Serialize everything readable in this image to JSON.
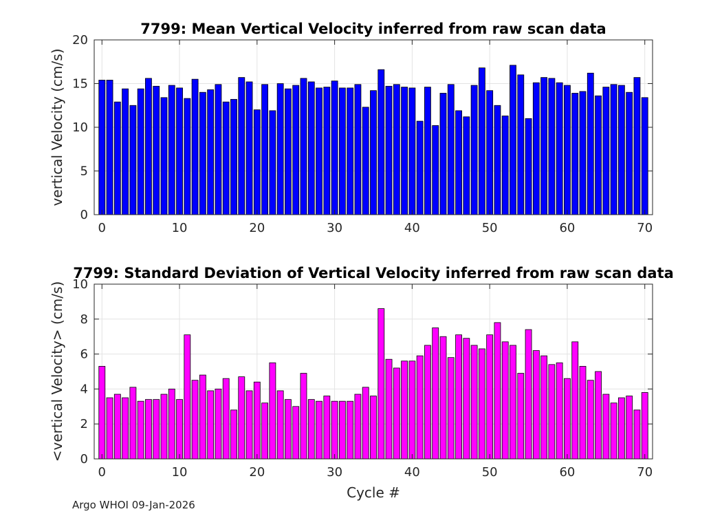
{
  "footer": "Argo WHOI 09-Jan-2026",
  "chart_data": [
    {
      "type": "bar",
      "title": "7799: Mean Vertical Velocity inferred from raw scan data",
      "xlabel": "",
      "ylabel": "vertical Velocity (cm/s)",
      "xlim": [
        -1,
        71
      ],
      "ylim": [
        0,
        20
      ],
      "xticks": [
        0,
        10,
        20,
        30,
        40,
        50,
        60,
        70
      ],
      "yticks": [
        0,
        5,
        10,
        15,
        20
      ],
      "grid": true,
      "bar_color": "#0000ff",
      "x": [
        0,
        1,
        2,
        3,
        4,
        5,
        6,
        7,
        8,
        9,
        10,
        11,
        12,
        13,
        14,
        15,
        16,
        17,
        18,
        19,
        20,
        21,
        22,
        23,
        24,
        25,
        26,
        27,
        28,
        29,
        30,
        31,
        32,
        33,
        34,
        35,
        36,
        37,
        38,
        39,
        40,
        41,
        42,
        43,
        44,
        45,
        46,
        47,
        48,
        49,
        50,
        51,
        52,
        53,
        54,
        55,
        56,
        57,
        58,
        59,
        60,
        61,
        62,
        63,
        64,
        65,
        66,
        67,
        68,
        69,
        70
      ],
      "values": [
        15.4,
        15.4,
        12.9,
        14.4,
        12.5,
        14.4,
        15.6,
        14.7,
        13.4,
        14.8,
        14.5,
        13.3,
        15.5,
        14.0,
        14.3,
        14.9,
        12.9,
        13.2,
        15.7,
        15.2,
        12.0,
        14.9,
        11.9,
        15.0,
        14.4,
        14.8,
        15.6,
        15.2,
        14.5,
        14.6,
        15.3,
        14.5,
        14.5,
        14.9,
        12.3,
        14.2,
        16.6,
        14.7,
        14.9,
        14.6,
        14.5,
        10.7,
        14.6,
        10.2,
        13.9,
        14.9,
        11.9,
        11.2,
        14.8,
        16.8,
        14.2,
        12.5,
        11.3,
        17.1,
        16.0,
        11.0,
        15.1,
        15.7,
        15.6,
        15.1,
        14.8,
        13.9,
        14.1,
        16.2,
        13.6,
        14.6,
        14.9,
        14.8,
        14.0,
        15.7,
        13.4
      ]
    },
    {
      "type": "bar",
      "title": "7799: Standard Deviation of Vertical Velocity inferred from raw scan data",
      "xlabel": "Cycle #",
      "ylabel": "<vertical Velocity> (cm/s)",
      "xlim": [
        -1,
        71
      ],
      "ylim": [
        0,
        10
      ],
      "xticks": [
        0,
        10,
        20,
        30,
        40,
        50,
        60,
        70
      ],
      "yticks": [
        0,
        2,
        4,
        6,
        8,
        10
      ],
      "grid": true,
      "bar_color": "#ff00ff",
      "x": [
        0,
        1,
        2,
        3,
        4,
        5,
        6,
        7,
        8,
        9,
        10,
        11,
        12,
        13,
        14,
        15,
        16,
        17,
        18,
        19,
        20,
        21,
        22,
        23,
        24,
        25,
        26,
        27,
        28,
        29,
        30,
        31,
        32,
        33,
        34,
        35,
        36,
        37,
        38,
        39,
        40,
        41,
        42,
        43,
        44,
        45,
        46,
        47,
        48,
        49,
        50,
        51,
        52,
        53,
        54,
        55,
        56,
        57,
        58,
        59,
        60,
        61,
        62,
        63,
        64,
        65,
        66,
        67,
        68,
        69,
        70
      ],
      "values": [
        5.3,
        3.5,
        3.7,
        3.5,
        4.1,
        3.3,
        3.4,
        3.4,
        3.7,
        4.0,
        3.4,
        7.1,
        4.5,
        4.8,
        3.9,
        4.0,
        4.6,
        2.8,
        4.7,
        3.9,
        4.4,
        3.2,
        5.5,
        3.9,
        3.4,
        3.0,
        4.9,
        3.4,
        3.3,
        3.6,
        3.3,
        3.3,
        3.3,
        3.7,
        4.1,
        3.6,
        8.6,
        5.7,
        5.2,
        5.6,
        5.6,
        5.9,
        6.5,
        7.5,
        7.0,
        5.8,
        7.1,
        6.9,
        6.5,
        6.3,
        7.1,
        7.8,
        6.7,
        6.5,
        4.9,
        7.4,
        6.2,
        5.9,
        5.4,
        5.5,
        4.6,
        6.7,
        5.3,
        4.5,
        5.0,
        3.7,
        3.2,
        3.5,
        3.6,
        2.8,
        3.8
      ]
    }
  ]
}
